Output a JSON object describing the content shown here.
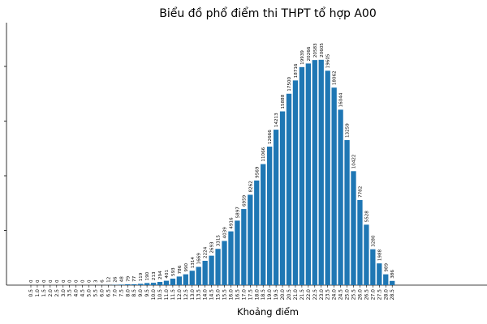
{
  "chart_data": {
    "type": "bar",
    "title": "Biểu đồ phổ điểm thi THPT tổ hợp A00",
    "xlabel": "Khoảng điểm",
    "ylabel": "",
    "ylim": [
      0,
      24000
    ],
    "grid": false,
    "bar_color": "#1f77b4",
    "categories": [
      "0.5",
      "1.0",
      "1.5",
      "2.0",
      "2.5",
      "3.0",
      "3.5",
      "4.0",
      "4.5",
      "5.0",
      "5.5",
      "6.0",
      "6.5",
      "7.0",
      "7.5",
      "8.0",
      "8.5",
      "9.0",
      "9.5",
      "10.0",
      "10.5",
      "11.0",
      "11.5",
      "12.0",
      "12.5",
      "13.0",
      "13.5",
      "14.0",
      "14.5",
      "15.0",
      "15.5",
      "16.0",
      "16.5",
      "17.0",
      "17.5",
      "18.0",
      "18.5",
      "19.0",
      "19.5",
      "20.0",
      "20.5",
      "21.0",
      "21.5",
      "22.0",
      "22.5",
      "23.0",
      "23.5",
      "24.0",
      "24.5",
      "25.0",
      "25.5",
      "26.0",
      "26.5",
      "27.0",
      "27.5",
      "28.0",
      "28.5"
    ],
    "values": [
      0,
      0,
      0,
      0,
      0,
      0,
      0,
      0,
      0,
      0,
      3,
      6,
      12,
      26,
      48,
      79,
      77,
      119,
      190,
      213,
      294,
      401,
      593,
      786,
      990,
      1314,
      1669,
      2224,
      2693,
      3315,
      4039,
      4916,
      5897,
      6959,
      8262,
      9569,
      11066,
      12666,
      14213,
      15888,
      17500,
      18716,
      19939,
      20266,
      20583,
      20605,
      19605,
      18062,
      16044,
      13259,
      10422,
      7782,
      5528,
      3280,
      1988,
      989,
      386
    ],
    "labels": [
      "0",
      "0",
      "0",
      "0",
      "0",
      "0",
      "0",
      "0",
      "0",
      "0",
      "3",
      "6",
      "12",
      "26",
      "48",
      "79",
      "77",
      "119",
      "190",
      "213",
      "294",
      "401",
      "593",
      "786",
      "990",
      "1314",
      "1669",
      "2224",
      "2693",
      "3315",
      "4039",
      "4916",
      "5897",
      "6959",
      "8262",
      "9569",
      "11066",
      "12666",
      "14213",
      "15888",
      "17500",
      "18716",
      "19939",
      "20266",
      "20583",
      "20605",
      "19605",
      "18062",
      "16044",
      "13259",
      "10422",
      "7782",
      "5528",
      "3280",
      "1988",
      "989",
      "386"
    ]
  }
}
